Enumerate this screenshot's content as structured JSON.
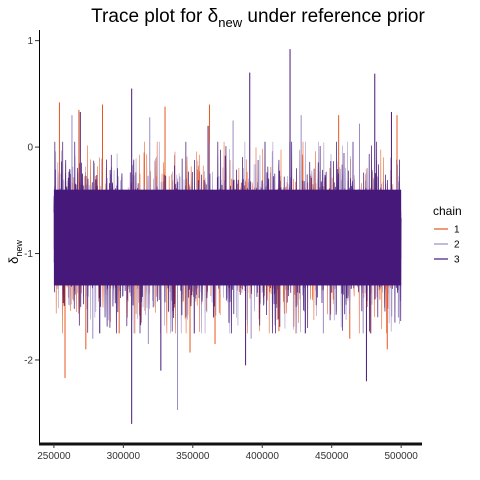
{
  "chart_data": {
    "type": "line",
    "title": "Trace plot for δ",
    "title_subscript": "new",
    "title_suffix": " under reference prior",
    "xlabel": "",
    "ylabel": "δ",
    "ylabel_subscript": "new",
    "xlim": [
      240000,
      515000
    ],
    "ylim": [
      -2.78,
      1.1
    ],
    "x_ticks": [
      250000,
      300000,
      350000,
      400000,
      450000,
      500000
    ],
    "y_ticks": [
      1,
      0,
      -1,
      -2
    ],
    "x_tick_labels": [
      "250000",
      "300000",
      "350000",
      "400000",
      "450000",
      "500000"
    ],
    "y_tick_labels": [
      "1",
      "0",
      "-1",
      "-2"
    ],
    "grid": false,
    "legend": {
      "title": "chain",
      "position": "right"
    },
    "iterations": [
      250000,
      500000
    ],
    "band": {
      "center": -0.85,
      "core_low": -1.3,
      "core_high": -0.4
    },
    "series": [
      {
        "name": "1",
        "color": "#e8571f",
        "spikes": [
          {
            "x": 254000,
            "y": 0.42
          },
          {
            "x": 268000,
            "y": 0.35
          },
          {
            "x": 285000,
            "y": 0.4
          },
          {
            "x": 330000,
            "y": 0.38
          },
          {
            "x": 362000,
            "y": 0.4
          },
          {
            "x": 455000,
            "y": 0.3
          },
          {
            "x": 497000,
            "y": 0.3
          },
          {
            "x": 258000,
            "y": -2.17
          },
          {
            "x": 273000,
            "y": -1.9
          },
          {
            "x": 297000,
            "y": -1.75
          },
          {
            "x": 348000,
            "y": -1.93
          },
          {
            "x": 366000,
            "y": -1.85
          },
          {
            "x": 412000,
            "y": -1.73
          },
          {
            "x": 463000,
            "y": -1.8
          },
          {
            "x": 490000,
            "y": -1.9
          }
        ]
      },
      {
        "name": "2",
        "color": "#9b8bc4",
        "spikes": [
          {
            "x": 263000,
            "y": 0.3
          },
          {
            "x": 319000,
            "y": 0.28
          },
          {
            "x": 379000,
            "y": 0.25
          },
          {
            "x": 428000,
            "y": 0.3
          },
          {
            "x": 470000,
            "y": 0.22
          },
          {
            "x": 339000,
            "y": -2.47
          },
          {
            "x": 278000,
            "y": -1.8
          },
          {
            "x": 318000,
            "y": -1.85
          },
          {
            "x": 392000,
            "y": -1.8
          },
          {
            "x": 444000,
            "y": -1.75
          },
          {
            "x": 498000,
            "y": -1.6
          }
        ]
      },
      {
        "name": "3",
        "color": "#45187a",
        "spikes": [
          {
            "x": 269000,
            "y": 0.33
          },
          {
            "x": 306000,
            "y": 0.55
          },
          {
            "x": 361000,
            "y": 0.2
          },
          {
            "x": 391000,
            "y": 0.7
          },
          {
            "x": 420000,
            "y": 0.92
          },
          {
            "x": 481000,
            "y": 0.69
          },
          {
            "x": 493000,
            "y": 0.33
          },
          {
            "x": 306000,
            "y": -2.6
          },
          {
            "x": 283000,
            "y": -1.75
          },
          {
            "x": 327000,
            "y": -2.1
          },
          {
            "x": 388000,
            "y": -2.05
          },
          {
            "x": 475000,
            "y": -2.2
          },
          {
            "x": 431000,
            "y": -1.75
          }
        ]
      }
    ]
  }
}
